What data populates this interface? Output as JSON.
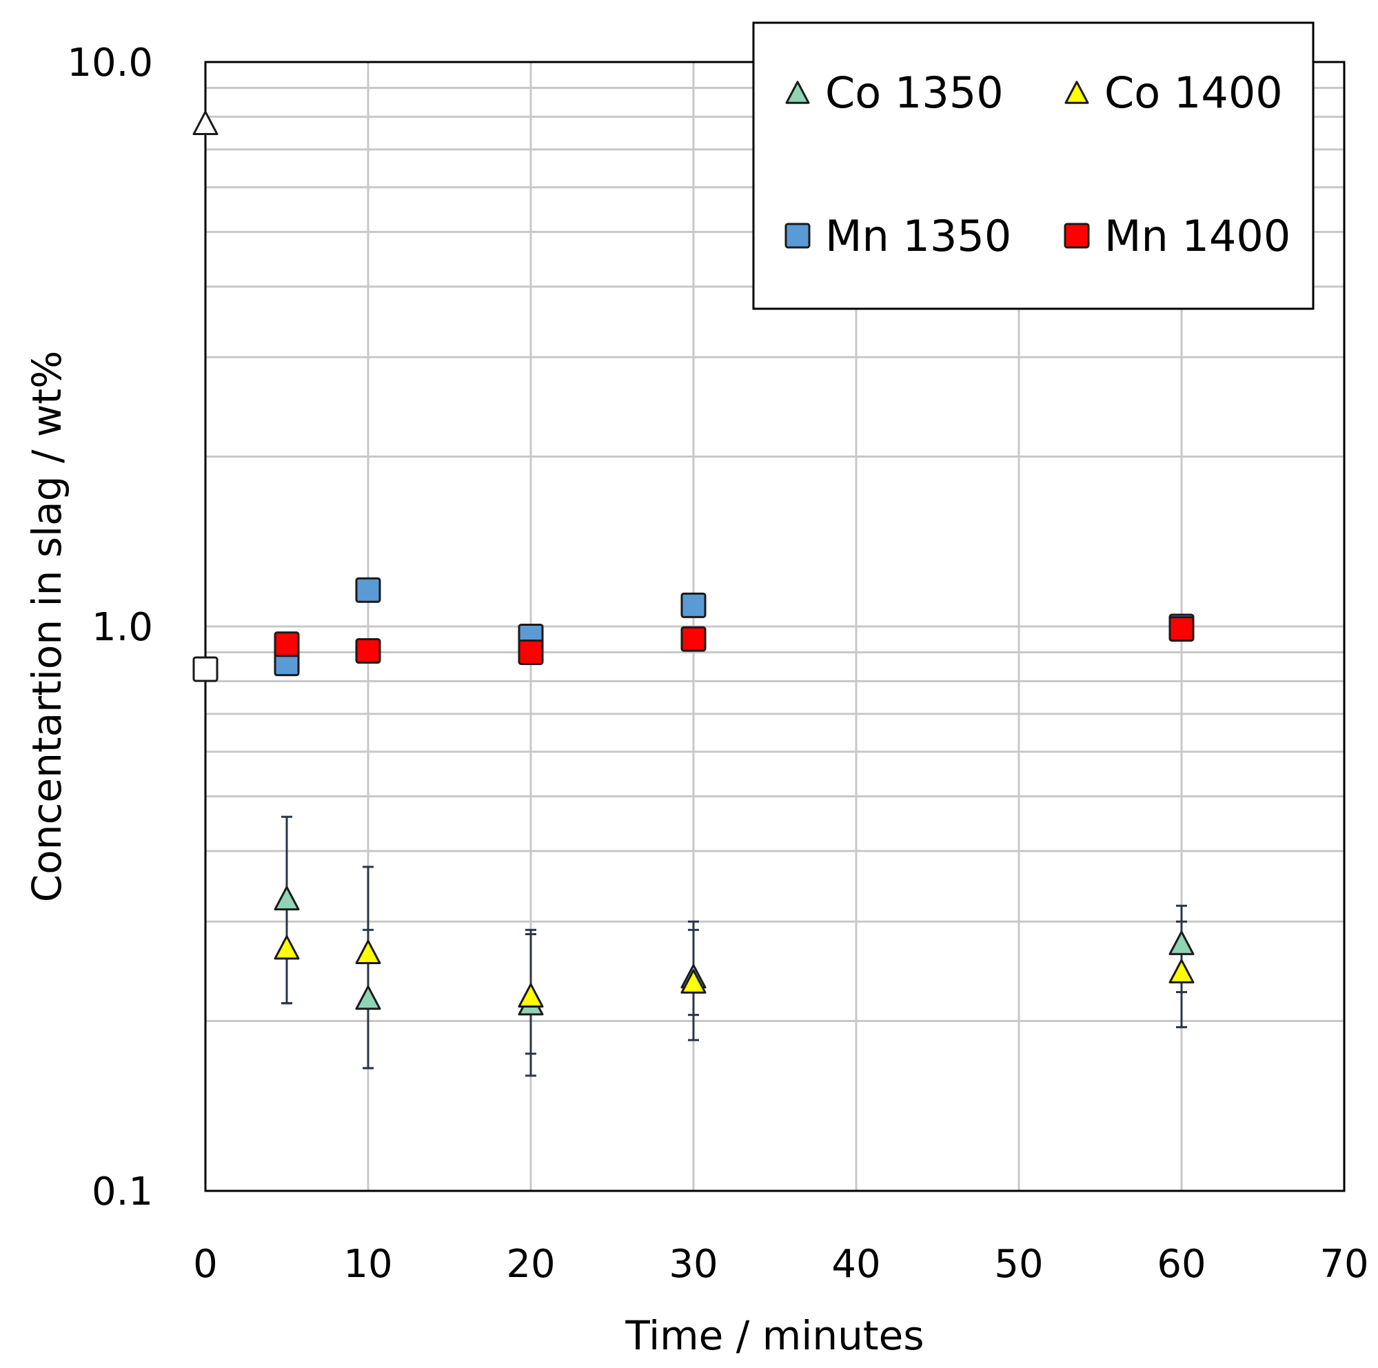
{
  "chart_data": {
    "type": "scatter",
    "title": "",
    "xlabel": "Time / minutes",
    "ylabel": "Concentartion in slag / wt%",
    "xlim": [
      0,
      70
    ],
    "ylim": [
      0.1,
      10.0
    ],
    "yscale": "log",
    "x_ticks": [
      0,
      10,
      20,
      30,
      40,
      50,
      60,
      70
    ],
    "x_tick_labels": [
      "0",
      "10",
      "20",
      "30",
      "40",
      "50",
      "60",
      "70"
    ],
    "y_ticks": [
      0.1,
      1.0,
      10.0
    ],
    "y_tick_labels": [
      "0.1",
      "1.0",
      "10.0"
    ],
    "grid": true,
    "legend_position": "top-right",
    "initial_points": [
      {
        "name": "Co initial",
        "x": 0,
        "y": 7.8,
        "marker": "triangle",
        "color": "#ffffff"
      },
      {
        "name": "Mn initial",
        "x": 0,
        "y": 0.84,
        "marker": "square",
        "color": "#ffffff"
      }
    ],
    "series": [
      {
        "name": "Co 1350",
        "marker": "triangle",
        "color": "#8fd4b4",
        "x": [
          5,
          10,
          20,
          30,
          60
        ],
        "y": [
          0.33,
          0.22,
          0.215,
          0.24,
          0.275
        ],
        "yerr_low": [
          0.215,
          0.165,
          0.16,
          0.185,
          0.195
        ],
        "yerr_high": [
          0.46,
          0.29,
          0.29,
          0.3,
          0.32
        ]
      },
      {
        "name": "Co 1400",
        "marker": "triangle",
        "color": "#ffff00",
        "x": [
          5,
          10,
          20,
          30,
          60
        ],
        "y": [
          0.27,
          0.265,
          0.222,
          0.235,
          0.245
        ],
        "yerr_low": [
          0.215,
          0.165,
          0.175,
          0.205,
          0.225
        ],
        "yerr_high": [
          0.27,
          0.375,
          0.285,
          0.29,
          0.3
        ]
      },
      {
        "name": "Mn 1350",
        "marker": "square",
        "color": "#5b9bd5",
        "x": [
          5,
          10,
          20,
          30,
          60
        ],
        "y": [
          0.86,
          1.16,
          0.96,
          1.09,
          1.0
        ],
        "yerr_low": [
          0.84,
          1.16,
          0.96,
          1.09,
          1.0
        ],
        "yerr_high": [
          0.86,
          1.16,
          0.96,
          1.09,
          1.0
        ]
      },
      {
        "name": "Mn 1400",
        "marker": "square",
        "color": "#ff0000",
        "x": [
          5,
          10,
          20,
          30,
          60
        ],
        "y": [
          0.93,
          0.905,
          0.9,
          0.95,
          0.99
        ],
        "yerr_low": [
          0.93,
          0.905,
          0.9,
          0.95,
          0.99
        ],
        "yerr_high": [
          0.93,
          0.905,
          0.9,
          0.95,
          0.99
        ]
      }
    ]
  }
}
